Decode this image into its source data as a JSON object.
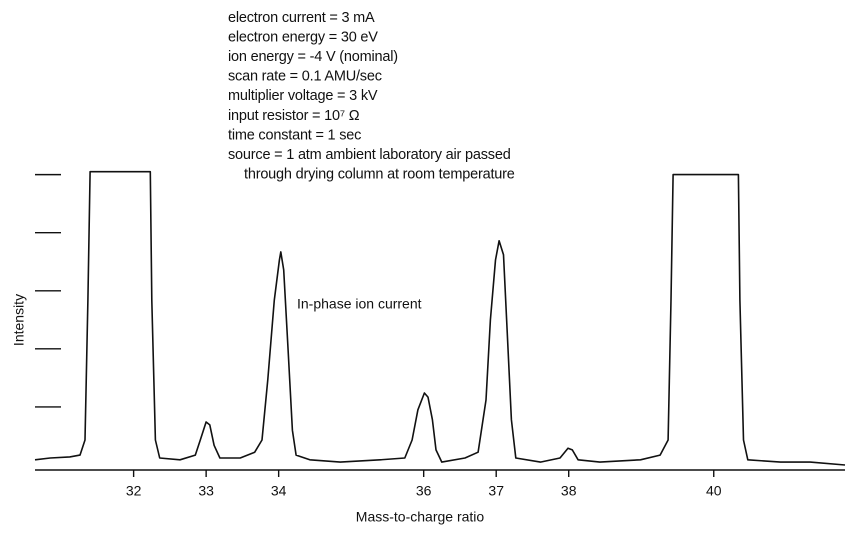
{
  "chart_data": {
    "type": "line",
    "xlabel": "Mass-to-charge ratio",
    "ylabel": "Intensity",
    "annotations": [
      "electron current = 3 mA",
      "electron energy = 30 eV",
      "ion energy = -4 V (nominal)",
      "scan rate = 0.1 AMU/sec",
      "multiplier voltage = 3 kV",
      "input resistor = 10⁷ Ω",
      "time constant = 1 sec",
      "source = 1 atm ambient laboratory air passed",
      "through drying column at room temperature"
    ],
    "trace_label": "In-phase ion current",
    "xlim": [
      30.64,
      41.81
    ],
    "ylim": [
      0,
      5.2
    ],
    "xticks": [
      32,
      33,
      34,
      36,
      37,
      38,
      40
    ],
    "yticks": [
      1,
      2,
      3,
      4,
      5
    ],
    "x": [
      30.64,
      30.85,
      31.12,
      31.26,
      31.33,
      31.37,
      31.4,
      32.23,
      32.25,
      32.3,
      32.36,
      32.64,
      32.85,
      32.92,
      33.0,
      33.05,
      33.11,
      33.19,
      33.47,
      33.67,
      33.77,
      33.85,
      33.94,
      34.01,
      34.03,
      34.07,
      34.13,
      34.19,
      34.24,
      34.43,
      34.85,
      35.4,
      35.74,
      35.84,
      35.92,
      36.01,
      36.06,
      36.12,
      36.17,
      36.25,
      36.57,
      36.75,
      36.86,
      36.92,
      36.99,
      37.04,
      37.1,
      37.15,
      37.21,
      37.27,
      37.61,
      37.88,
      37.99,
      38.05,
      38.13,
      38.43,
      38.99,
      39.26,
      39.37,
      39.41,
      39.44,
      40.34,
      40.36,
      40.41,
      40.47,
      40.92,
      41.33,
      41.81
    ],
    "series": [
      {
        "name": "In-phase ion current",
        "color": "#111111",
        "values": [
          0.09,
          0.12,
          0.14,
          0.17,
          0.43,
          2.84,
          5.05,
          5.05,
          2.84,
          0.43,
          0.12,
          0.09,
          0.17,
          0.43,
          0.74,
          0.69,
          0.34,
          0.12,
          0.12,
          0.22,
          0.43,
          1.47,
          2.84,
          3.53,
          3.67,
          3.36,
          1.98,
          0.6,
          0.17,
          0.09,
          0.05,
          0.09,
          0.12,
          0.43,
          0.95,
          1.24,
          1.17,
          0.78,
          0.26,
          0.05,
          0.12,
          0.22,
          1.12,
          2.5,
          3.53,
          3.86,
          3.62,
          2.33,
          0.78,
          0.12,
          0.05,
          0.12,
          0.29,
          0.26,
          0.09,
          0.05,
          0.09,
          0.17,
          0.43,
          2.84,
          5.0,
          5.0,
          2.84,
          0.43,
          0.09,
          0.05,
          0.05,
          0
        ]
      }
    ]
  }
}
